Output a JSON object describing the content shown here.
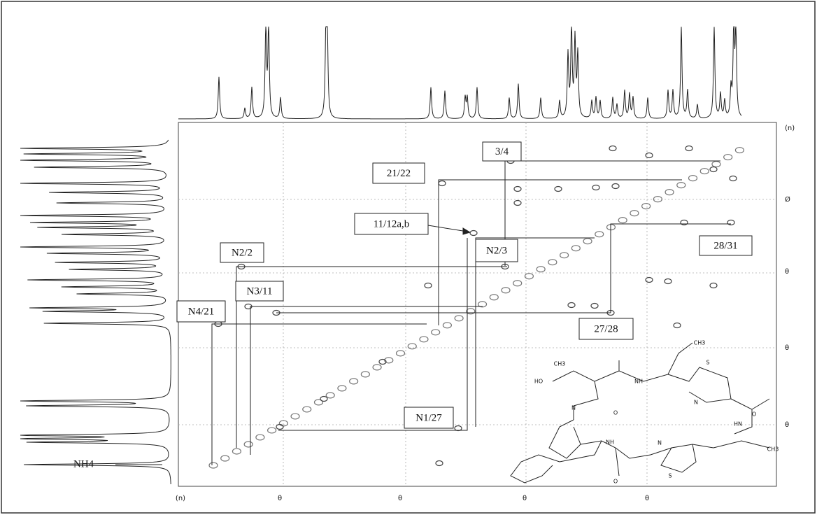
{
  "annotations": [
    "3/4",
    "21/22",
    "11/12a,b",
    "N2/2",
    "N2/3",
    "28/31",
    "N3/11",
    "N4/21",
    "27/28",
    "N1/27"
  ],
  "side_label": "NH4",
  "axis": {
    "x_ticks": [
      "(n)",
      "θ",
      "θ",
      "θ",
      "θ"
    ],
    "y_ticks": [
      "(n)",
      "Ø",
      "θ",
      "θ",
      "θ"
    ]
  },
  "structure_labels": [
    "HO",
    "CH3",
    "NH",
    "O",
    "N",
    "S",
    "N",
    "HN",
    "O",
    "N",
    "S",
    "NH",
    "O",
    "CH3",
    "CH3"
  ]
}
